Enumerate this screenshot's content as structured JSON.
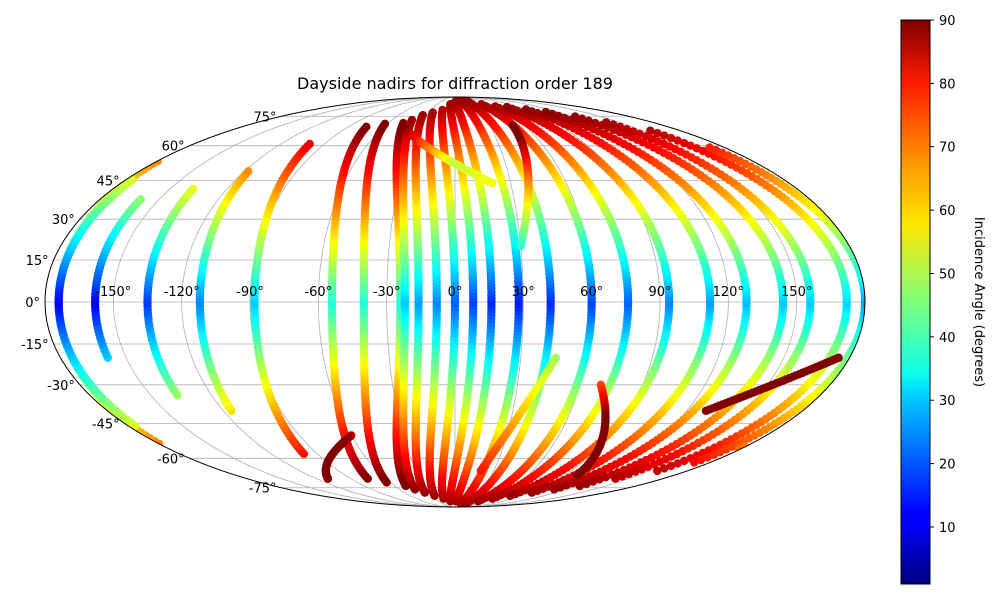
{
  "chart_data": {
    "type": "scatter",
    "projection": "mollweide",
    "title": "Dayside nadirs for diffraction order 189",
    "grid": true,
    "x_ticks": [
      "-150°",
      "-120°",
      "-90°",
      "-60°",
      "-30°",
      "0°",
      "30°",
      "60°",
      "90°",
      "120°",
      "150°"
    ],
    "x_tick_values": [
      -150,
      -120,
      -90,
      -60,
      -30,
      0,
      30,
      60,
      90,
      120,
      150
    ],
    "y_ticks": [
      "-75°",
      "-60°",
      "-45°",
      "-30°",
      "-15°",
      "0°",
      "15°",
      "30°",
      "45°",
      "60°",
      "75°"
    ],
    "y_tick_values": [
      -75,
      -60,
      -45,
      -30,
      -15,
      0,
      15,
      30,
      45,
      60,
      75
    ],
    "xlim": [
      -180,
      180
    ],
    "ylim": [
      -90,
      90
    ],
    "colorbar": {
      "label": "Incidence Angle (degrees)",
      "colormap": "jet",
      "range": [
        1,
        90
      ],
      "ticks": [
        "10",
        "20",
        "30",
        "40",
        "50",
        "60",
        "70",
        "80",
        "90"
      ],
      "tick_values": [
        10,
        20,
        30,
        40,
        50,
        60,
        70,
        80,
        90
      ]
    },
    "tracks": [
      {
        "type": "orbit",
        "center_lon": -174,
        "amplitude": 16,
        "lat_min": -20,
        "lat_max": 38
      },
      {
        "type": "orbit",
        "center_lon": -160,
        "amplitude": 25,
        "lat_min": -34,
        "lat_max": 42
      },
      {
        "type": "orbit",
        "center_lon": -148,
        "amplitude": 36,
        "lat_min": -40,
        "lat_max": 50
      },
      {
        "type": "orbit",
        "center_lon": -134,
        "amplitude": 46,
        "lat_min": -58,
        "lat_max": 62
      },
      {
        "type": "orbit",
        "center_lon": -112,
        "amplitude": 58,
        "lat_min": -70,
        "lat_max": 70
      },
      {
        "type": "orbit",
        "center_lon": -98,
        "amplitude": 58,
        "lat_min": -72,
        "lat_max": 72
      },
      {
        "type": "orbit",
        "center_lon": -82,
        "amplitude": 58,
        "lat_min": -74,
        "lat_max": 72
      },
      {
        "type": "orbit",
        "center_lon": -68,
        "amplitude": 46,
        "lat_min": -76,
        "lat_max": 74
      },
      {
        "type": "orbit",
        "center_lon": -56,
        "amplitude": 40,
        "lat_min": -78,
        "lat_max": 76
      },
      {
        "type": "orbit",
        "center_lon": -44,
        "amplitude": 36,
        "lat_min": -80,
        "lat_max": 78
      },
      {
        "type": "orbit",
        "center_lon": -30,
        "amplitude": 30,
        "lat_min": -82,
        "lat_max": 80
      },
      {
        "type": "orbit",
        "center_lon": -18,
        "amplitude": 26,
        "lat_min": -84,
        "lat_max": 84
      },
      {
        "type": "orbit",
        "center_lon": -6,
        "amplitude": 22,
        "lat_min": -84,
        "lat_max": 86
      },
      {
        "type": "orbit",
        "center_lon": 8,
        "amplitude": 20,
        "lat_min": -86,
        "lat_max": 86
      },
      {
        "type": "orbit",
        "center_lon": 20,
        "amplitude": 22,
        "lat_min": -86,
        "lat_max": 86
      },
      {
        "type": "orbit",
        "center_lon": 34,
        "amplitude": 26,
        "lat_min": -84,
        "lat_max": 84
      },
      {
        "type": "orbit",
        "center_lon": 46,
        "amplitude": 30,
        "lat_min": -82,
        "lat_max": 82
      },
      {
        "type": "orbit",
        "center_lon": 58,
        "amplitude": 36,
        "lat_min": -80,
        "lat_max": 82
      },
      {
        "type": "orbit",
        "center_lon": 72,
        "amplitude": 40,
        "lat_min": -78,
        "lat_max": 80
      },
      {
        "type": "orbit",
        "center_lon": 84,
        "amplitude": 44,
        "lat_min": -76,
        "lat_max": 78
      },
      {
        "type": "orbit",
        "center_lon": 98,
        "amplitude": 46,
        "lat_min": -74,
        "lat_max": 76
      },
      {
        "type": "orbit",
        "center_lon": 110,
        "amplitude": 46,
        "lat_min": -70,
        "lat_max": 72
      },
      {
        "type": "orbit",
        "center_lon": 124,
        "amplitude": 48,
        "lat_min": -66,
        "lat_max": 68
      },
      {
        "type": "orbit",
        "center_lon": 140,
        "amplitude": 40,
        "lat_min": -62,
        "lat_max": 60
      },
      {
        "type": "orbit",
        "center_lon": 156,
        "amplitude": 30,
        "lat_min": -56,
        "lat_max": 54
      },
      {
        "type": "orbit",
        "center_lon": 170,
        "amplitude": 16,
        "lat_min": -46,
        "lat_max": 46
      },
      {
        "type": "segment",
        "lon1": -40,
        "lat1": 68,
        "lon2": 20,
        "lat2": 44
      },
      {
        "type": "segment",
        "lon1": 50,
        "lat1": 70,
        "lon2": 30,
        "lat2": 20
      },
      {
        "type": "segment",
        "lon1": 46,
        "lat1": -20,
        "lon2": 20,
        "lat2": -66
      },
      {
        "type": "segment",
        "lon1": 70,
        "lat1": -30,
        "lon2": 100,
        "lat2": -68
      },
      {
        "type": "segment",
        "lon1": -60,
        "lat1": -50,
        "lon2": -110,
        "lat2": -70
      },
      {
        "type": "segment",
        "lon1": 130,
        "lat1": -40,
        "lon2": 175,
        "lat2": -20
      }
    ]
  }
}
